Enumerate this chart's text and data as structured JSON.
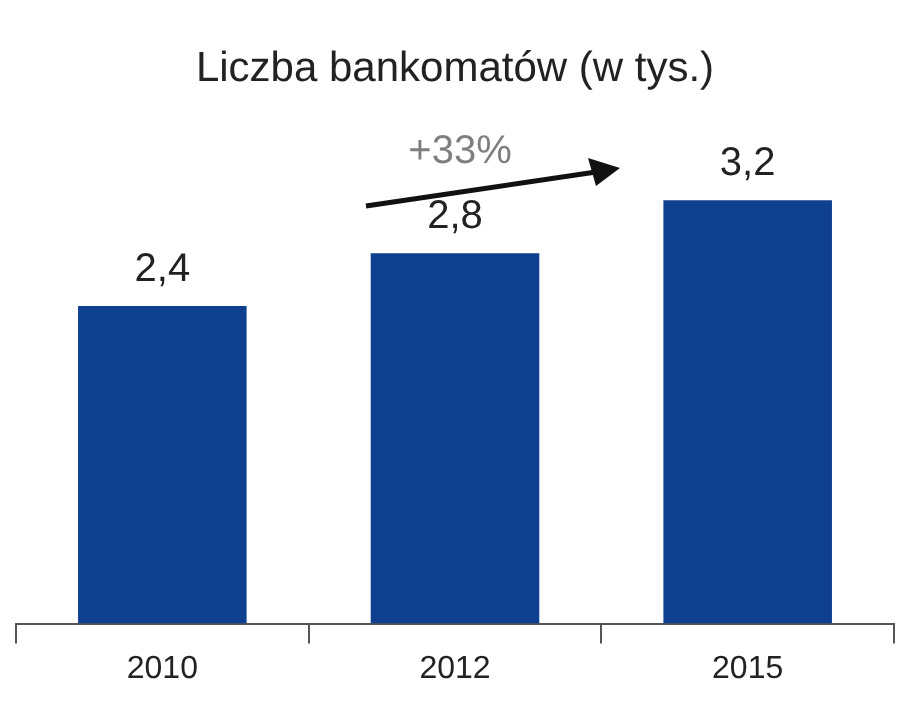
{
  "chart_data": {
    "type": "bar",
    "title": "Liczba bankomatów (w tys.)",
    "categories": [
      "2010",
      "2012",
      "2015"
    ],
    "values": [
      2.4,
      2.8,
      3.2
    ],
    "value_labels": [
      "2,4",
      "2,8",
      "3,2"
    ],
    "color": "#0f3f8f",
    "annotations": [
      "+33%"
    ],
    "legend": false,
    "grid": false
  }
}
